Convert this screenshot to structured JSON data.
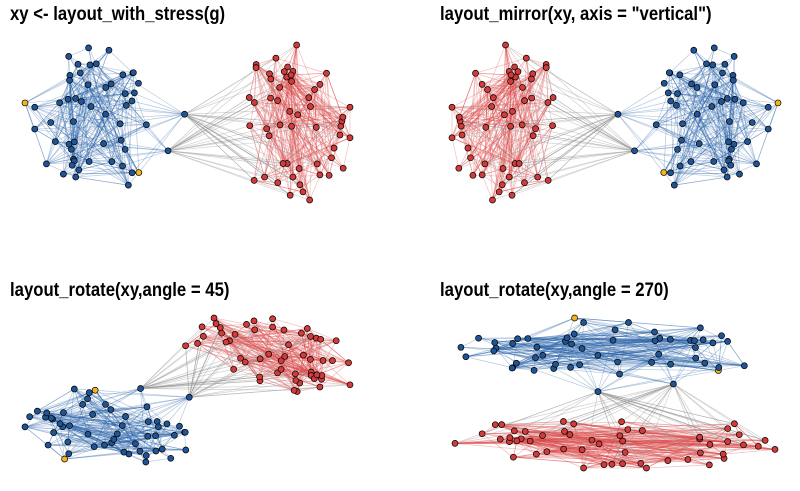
{
  "panels": [
    {
      "title": "xy <- layout_with_stress(g)",
      "transform": "none"
    },
    {
      "title": "layout_mirror(xy, axis = \"vertical\")",
      "transform": "mirror-vertical"
    },
    {
      "title": "layout_rotate(xy,angle = 45)",
      "transform": "rotate",
      "angle": 45
    },
    {
      "title": "layout_rotate(xy,angle = 270)",
      "transform": "rotate",
      "angle": 270
    }
  ],
  "colors": {
    "group_a": "#1f5596",
    "group_b": "#d33a3a",
    "highlight": "#f2b51c",
    "edge_a": "#2c63a8",
    "edge_b": "#d94545",
    "edge_between": "#9a9a9a"
  }
}
